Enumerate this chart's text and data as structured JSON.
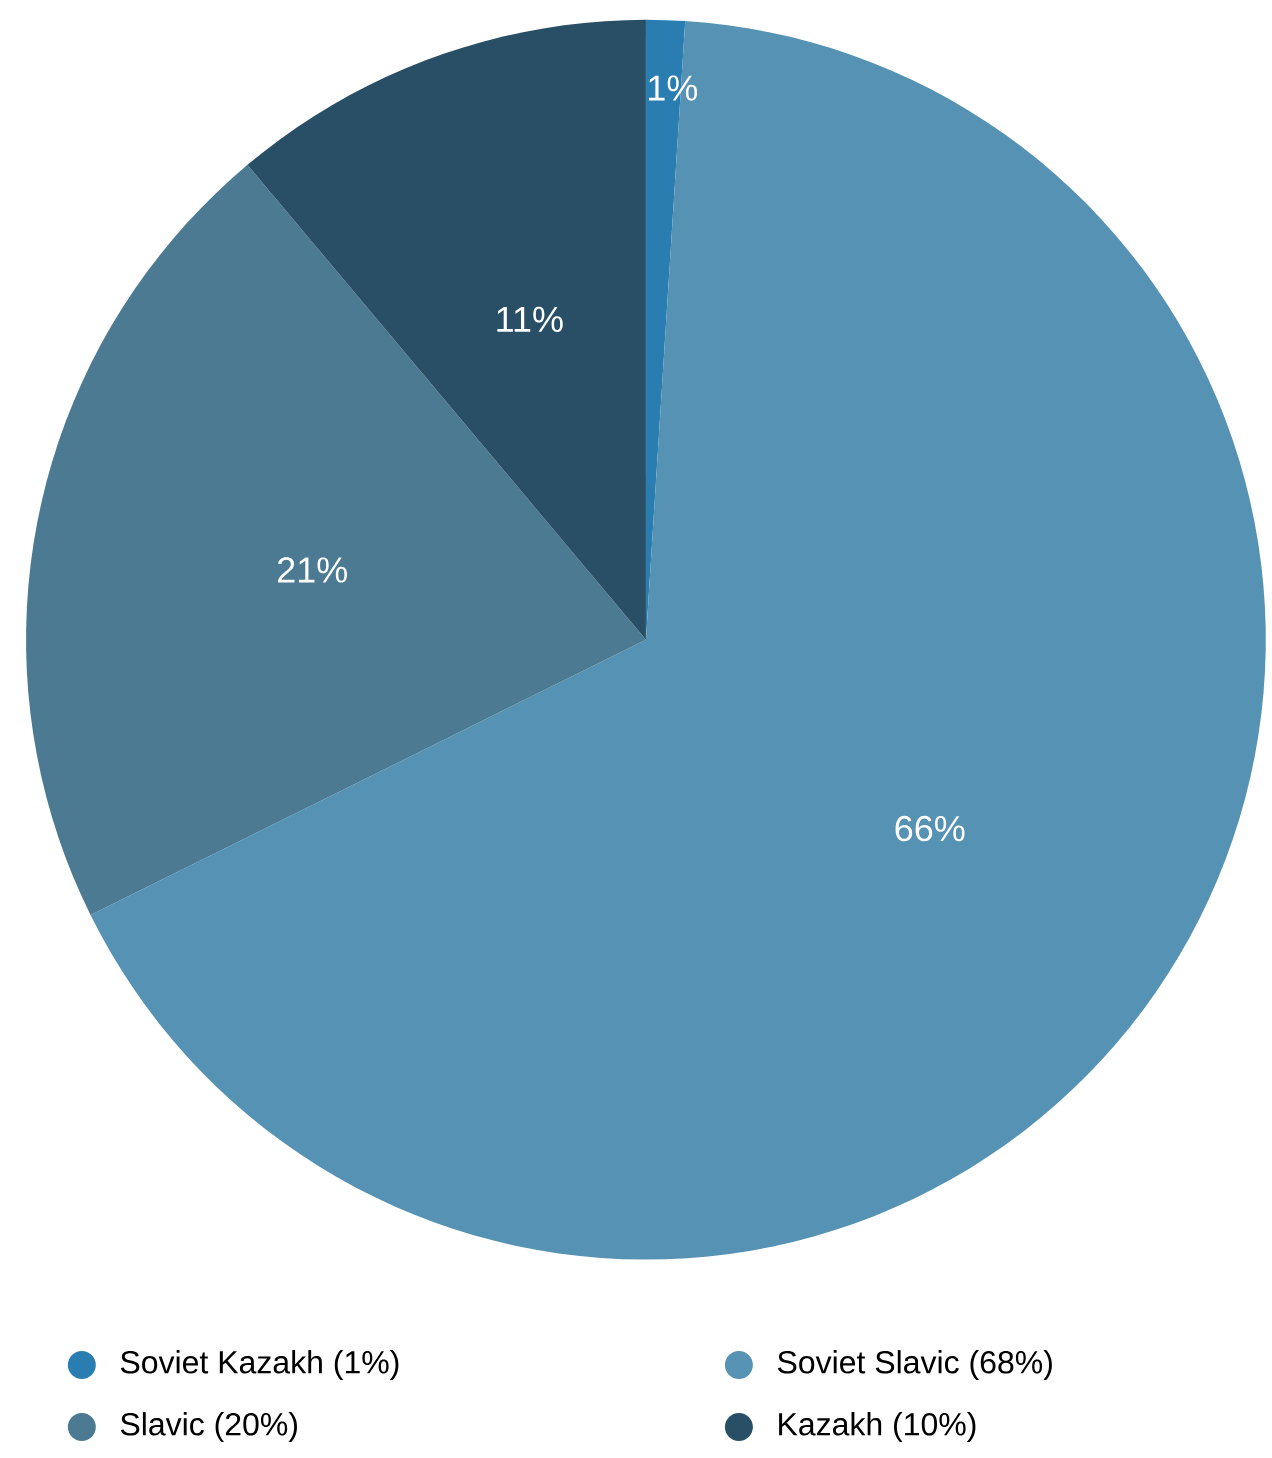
{
  "chart_data": {
    "type": "pie",
    "categories": [
      "Soviet Kazakh (1%)",
      "Soviet Slavic (68%)",
      "Slavic (20%)",
      "Kazakh (10%)"
    ],
    "values": [
      1,
      66,
      21,
      11
    ],
    "value_labels": [
      "1%",
      "66%",
      "21%",
      "11%"
    ],
    "colors": [
      "#2a7db0",
      "#5592b3",
      "#4c7a92",
      "#284f66"
    ],
    "legend": "bottom"
  }
}
